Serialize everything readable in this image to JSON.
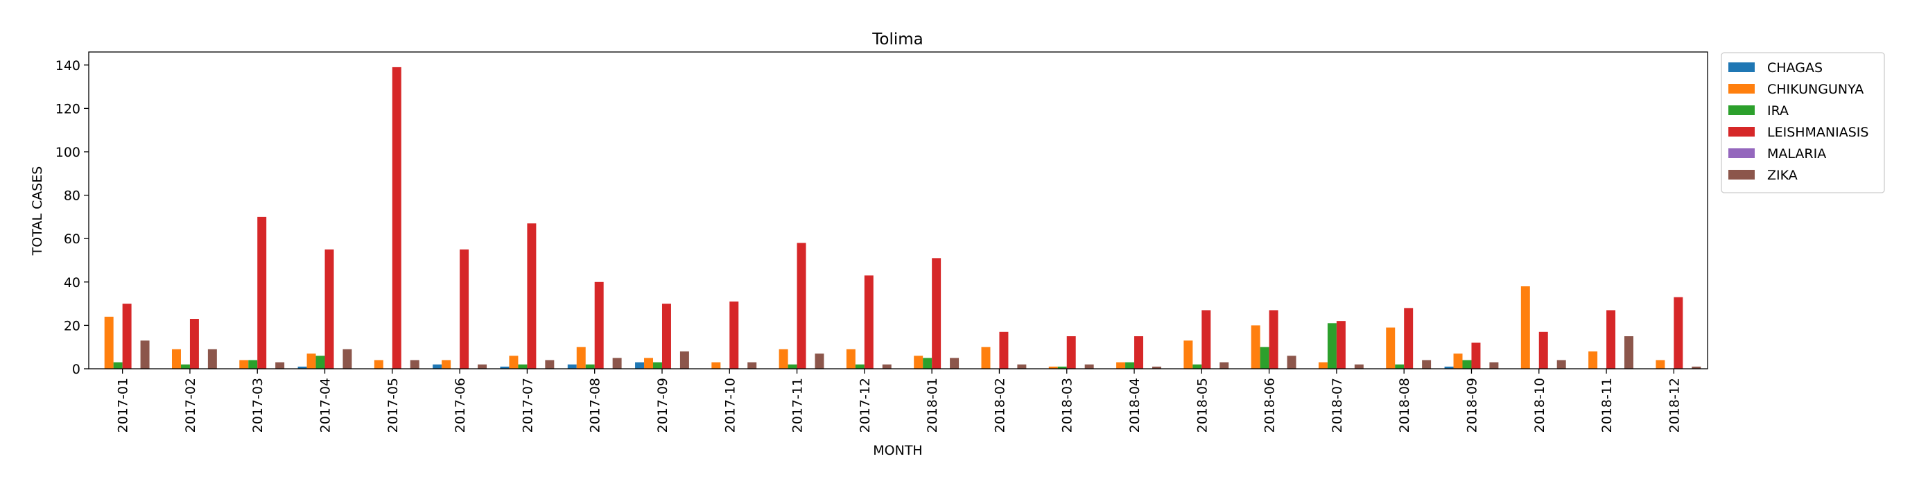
{
  "chart_data": {
    "type": "bar",
    "title": "Tolima",
    "xlabel": "MONTH",
    "ylabel": "TOTAL CASES",
    "ylim": [
      0,
      146
    ],
    "yticks": [
      0,
      20,
      40,
      60,
      80,
      100,
      120,
      140
    ],
    "grid": false,
    "legend_position": "outside-top-right",
    "categories": [
      "2017-01",
      "2017-02",
      "2017-03",
      "2017-04",
      "2017-05",
      "2017-06",
      "2017-07",
      "2017-08",
      "2017-09",
      "2017-10",
      "2017-11",
      "2017-12",
      "2018-01",
      "2018-02",
      "2018-03",
      "2018-04",
      "2018-05",
      "2018-06",
      "2018-07",
      "2018-08",
      "2018-09",
      "2018-10",
      "2018-11",
      "2018-12"
    ],
    "series": [
      {
        "name": "CHAGAS",
        "color": "#1f77b4",
        "values": [
          0,
          0,
          0,
          1,
          0,
          2,
          1,
          2,
          3,
          0,
          0,
          0,
          0,
          0,
          0,
          0,
          0,
          0,
          0,
          0,
          1,
          0,
          0,
          0
        ]
      },
      {
        "name": "CHIKUNGUNYA",
        "color": "#ff7f0e",
        "values": [
          24,
          9,
          4,
          7,
          4,
          4,
          6,
          10,
          5,
          3,
          9,
          9,
          6,
          10,
          1,
          3,
          13,
          20,
          3,
          19,
          7,
          38,
          8,
          4
        ]
      },
      {
        "name": "IRA",
        "color": "#2ca02c",
        "values": [
          3,
          2,
          4,
          6,
          0,
          0,
          2,
          2,
          3,
          0,
          2,
          2,
          5,
          0,
          1,
          3,
          2,
          10,
          21,
          2,
          4,
          0,
          0,
          0
        ]
      },
      {
        "name": "LEISHMANIASIS",
        "color": "#d62728",
        "values": [
          30,
          23,
          70,
          55,
          139,
          55,
          67,
          40,
          30,
          31,
          58,
          43,
          51,
          17,
          15,
          15,
          27,
          27,
          22,
          28,
          12,
          17,
          27,
          33
        ]
      },
      {
        "name": "MALARIA",
        "color": "#9467bd",
        "values": [
          0,
          0,
          0,
          0,
          0,
          0,
          0,
          0,
          0,
          0,
          0,
          0,
          0,
          0,
          0,
          0,
          0,
          0,
          0,
          0,
          0,
          0,
          0,
          0
        ]
      },
      {
        "name": "ZIKA",
        "color": "#8c564b",
        "values": [
          13,
          9,
          3,
          9,
          4,
          2,
          4,
          5,
          8,
          3,
          7,
          2,
          5,
          2,
          2,
          1,
          3,
          6,
          2,
          4,
          3,
          4,
          15,
          1
        ]
      }
    ]
  }
}
